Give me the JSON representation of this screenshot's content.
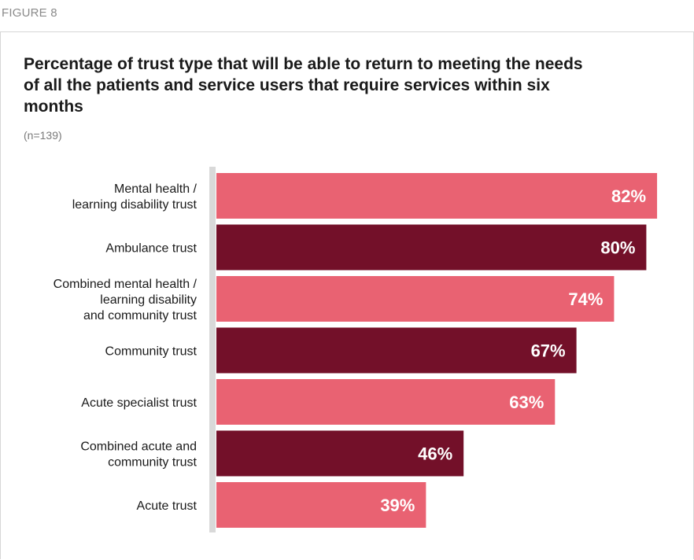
{
  "figure_label": "FIGURE 8",
  "colors": {
    "light": "#e96272",
    "dark": "#731029",
    "axis": "#d9d9d9"
  },
  "chart_data": {
    "type": "bar",
    "orientation": "horizontal",
    "title": "Percentage of trust type that will be able to return to meeting the needs of all the patients and service users that require services within six months",
    "subtitle": "(n=139)",
    "categories": [
      [
        "Mental health /",
        "learning disability trust"
      ],
      [
        "Ambulance trust"
      ],
      [
        "Combined mental health /",
        "learning disability",
        "and community trust"
      ],
      [
        "Community trust"
      ],
      [
        "Acute specialist trust"
      ],
      [
        "Combined acute and",
        "community trust"
      ],
      [
        "Acute trust"
      ]
    ],
    "values": [
      82,
      80,
      74,
      67,
      63,
      46,
      39
    ],
    "value_labels": [
      "82%",
      "80%",
      "74%",
      "67%",
      "63%",
      "46%",
      "39%"
    ],
    "bar_colors": [
      "light",
      "dark",
      "light",
      "dark",
      "light",
      "dark",
      "light"
    ],
    "xlim": [
      0,
      100
    ],
    "grid": false
  }
}
